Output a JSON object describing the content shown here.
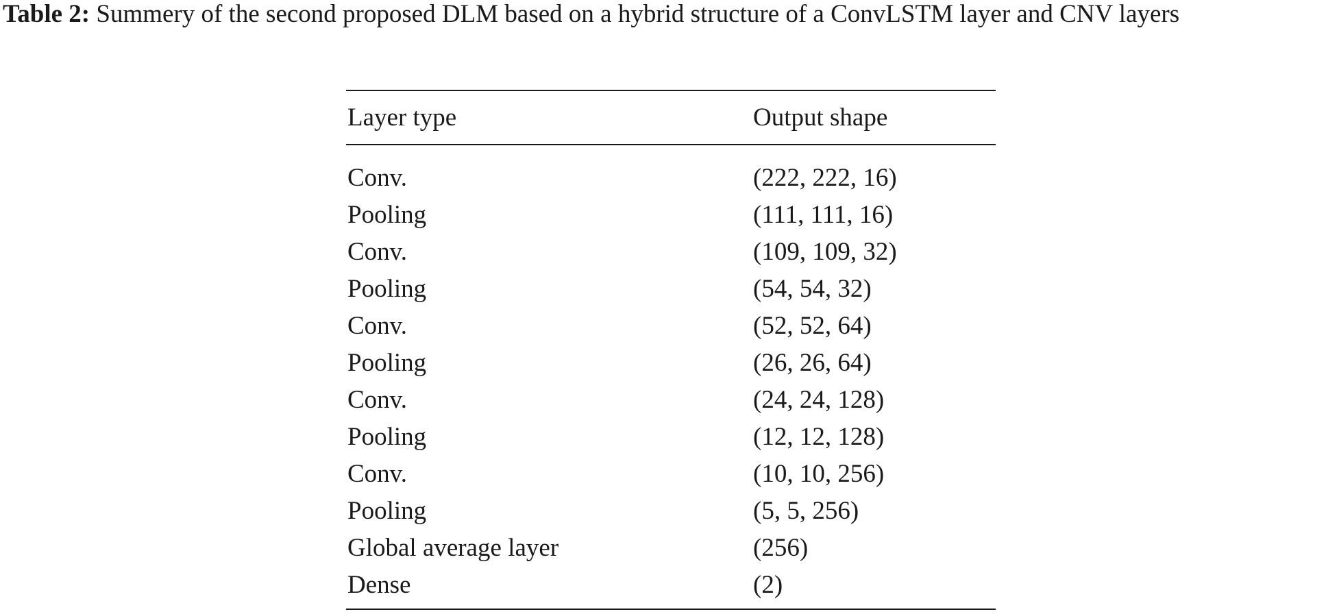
{
  "caption": {
    "label": "Table 2:",
    "text": "Summery of the second proposed DLM based on a hybrid structure of a ConvLSTM layer and CNV layers"
  },
  "table": {
    "headers": [
      "Layer type",
      "Output shape"
    ],
    "rows": [
      [
        "Conv.",
        "(222, 222, 16)"
      ],
      [
        "Pooling",
        "(111, 111, 16)"
      ],
      [
        "Conv.",
        "(109, 109, 32)"
      ],
      [
        "Pooling",
        "(54, 54, 32)"
      ],
      [
        "Conv.",
        "(52, 52, 64)"
      ],
      [
        "Pooling",
        "(26, 26, 64)"
      ],
      [
        "Conv.",
        "(24, 24, 128)"
      ],
      [
        "Pooling",
        "(12, 12, 128)"
      ],
      [
        "Conv.",
        "(10, 10, 256)"
      ],
      [
        "Pooling",
        "(5, 5, 256)"
      ],
      [
        "Global average layer",
        "(256)"
      ],
      [
        "Dense",
        "(2)"
      ]
    ]
  }
}
